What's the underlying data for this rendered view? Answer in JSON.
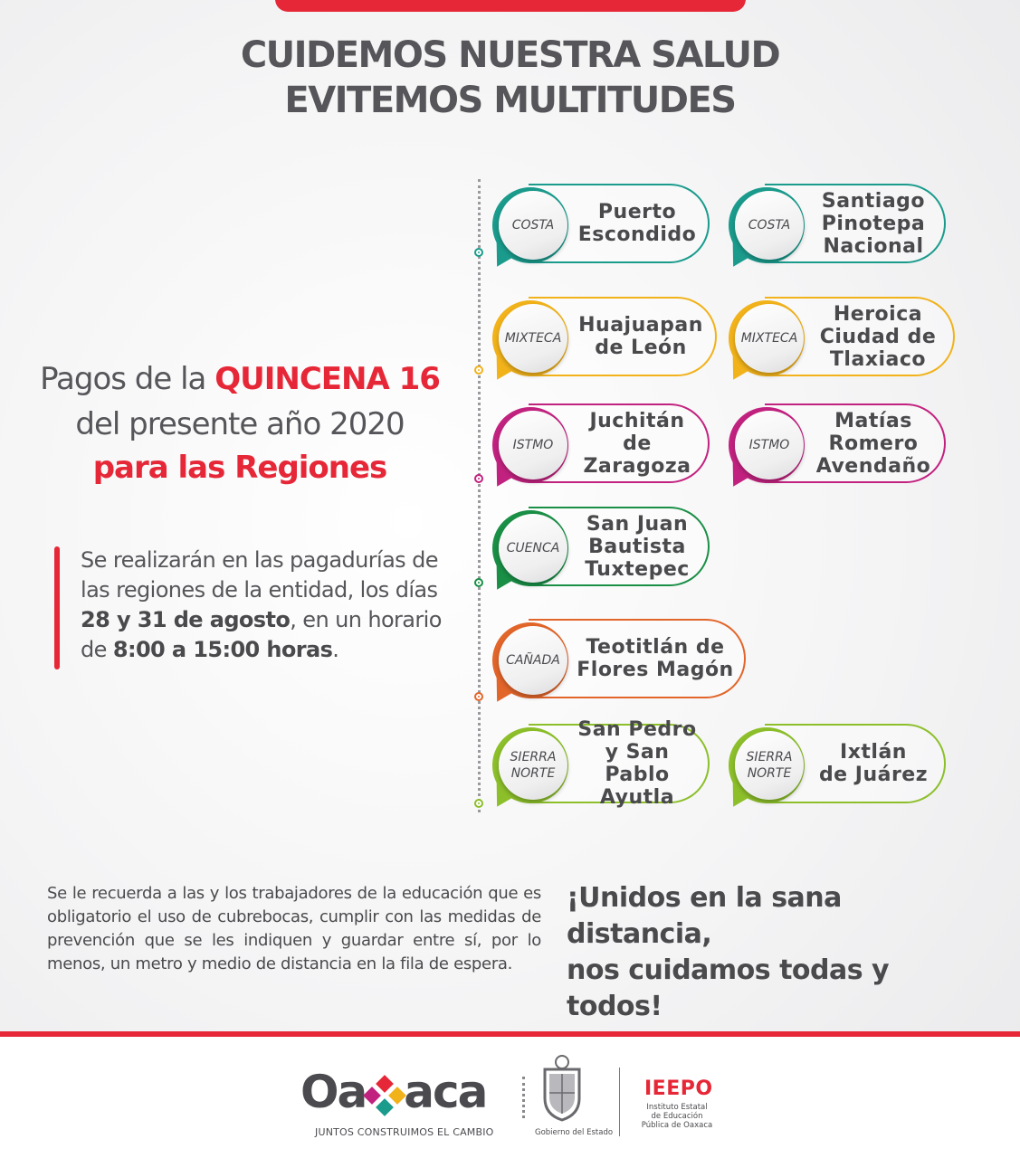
{
  "headline": {
    "line1": "CUIDEMOS NUESTRA SALUD",
    "line2": "EVITEMOS MULTITUDES"
  },
  "pagos": {
    "line1_prefix": "Pagos de la ",
    "line1_highlight": "QUINCENA 16",
    "line2": "del presente año 2020",
    "line3": "para las Regiones"
  },
  "info": {
    "text1": "Se realizarán en las pagadurías de las regiones de la entidad, los días ",
    "dates": "28 y 31 de agosto",
    "text2": ", en un horario de ",
    "hours": "8:00 a 15:00 horas",
    "text3": "."
  },
  "regions": [
    {
      "region": "COSTA",
      "place": "Puerto\nEscondido",
      "color": "#1a9b8c"
    },
    {
      "region": "COSTA",
      "place": "Santiago\nPinotepa\nNacional",
      "color": "#1a9b8c"
    },
    {
      "region": "MIXTECA",
      "place": "Huajuapan\nde León",
      "color": "#f1b21a"
    },
    {
      "region": "MIXTECA",
      "place": "Heroica\nCiudad de\nTlaxiaco",
      "color": "#f1b21a"
    },
    {
      "region": "ISTMO",
      "place": "Juchitán de\nZaragoza",
      "color": "#c2227f"
    },
    {
      "region": "ISTMO",
      "place": "Matías\nRomero\nAvendaño",
      "color": "#c2227f"
    },
    {
      "region": "CUENCA",
      "place": "San Juan\nBautista\nTuxtepec",
      "color": "#1a8f46"
    },
    {
      "region": "CAÑADA",
      "place": "Teotitlán de\nFlores Magón",
      "color": "#e2652a"
    },
    {
      "region": "SIERRA\nNORTE",
      "place": "San Pedro\ny San Pablo\nAyutla",
      "color": "#8cbf2a"
    },
    {
      "region": "SIERRA\nNORTE",
      "place": "Ixtlán\nde Juárez",
      "color": "#8cbf2a"
    }
  ],
  "recuerdo": "Se le recuerda a las y los trabajadores de la educación que es obligatorio el uso de cubrebocas, cumplir con las medidas de prevención que se les indiquen y guardar entre sí, por lo menos, un metro y medio de distancia en la fila de espera.",
  "unidos": {
    "line1": "¡Unidos en la sana distancia,",
    "line2": "nos cuidamos todas y todos!"
  },
  "footer": {
    "logo_left": "Oa",
    "logo_right": "aca",
    "slogan": "JUNTOS CONSTRUIMOS EL CAMBIO",
    "gobierno": "Gobierno del Estado",
    "ieepo": "IEEPO",
    "ieepo_full": "Instituto Estatal de Educación Pública de Oaxaca"
  },
  "colors": {
    "accent_red": "#e62737",
    "text_gray": "#56565a"
  }
}
